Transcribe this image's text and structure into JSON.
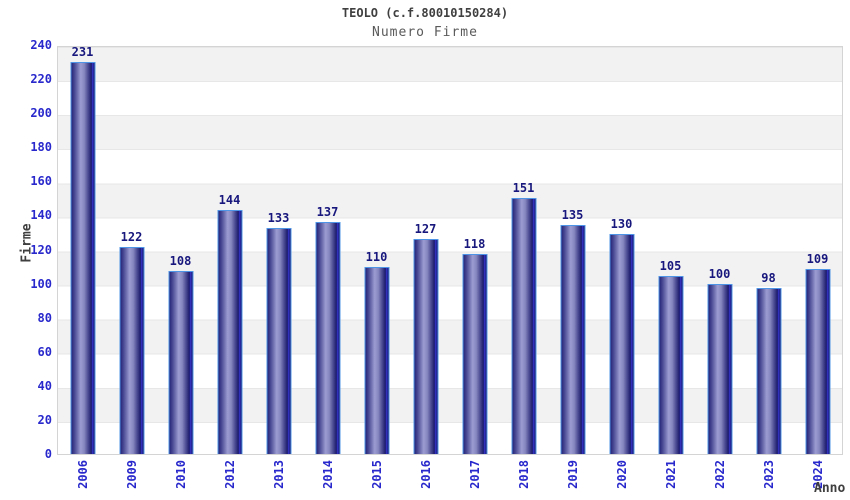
{
  "chart_data": {
    "type": "bar",
    "title": "TEOLO (c.f.80010150284)",
    "subtitle": "Numero Firme",
    "xlabel": "Anno",
    "ylabel": "Firme",
    "categories": [
      "2006",
      "2009",
      "2010",
      "2012",
      "2013",
      "2014",
      "2015",
      "2016",
      "2017",
      "2018",
      "2019",
      "2020",
      "2021",
      "2022",
      "2023",
      "2024"
    ],
    "values": [
      231,
      122,
      108,
      144,
      133,
      137,
      110,
      127,
      118,
      151,
      135,
      130,
      105,
      100,
      98,
      109
    ],
    "ylim": [
      0,
      240
    ],
    "ytick_step": 20,
    "yticks": [
      0,
      20,
      40,
      60,
      80,
      100,
      120,
      140,
      160,
      180,
      200,
      220,
      240
    ],
    "grid": "horizontal alternating bands, line every 20 units",
    "legend_position": "none",
    "bar_value_labels_shown": true,
    "x_tick_rotation_degrees": -90
  },
  "colors": {
    "title_color": "#3f3f3f",
    "subtitle_color": "#5a5a5a",
    "axis_label": "#3f3f3f",
    "tick_label": "#2828cc",
    "value_label": "#17177d",
    "band_gray": "#f3f2f3",
    "band_white": "#ffffff",
    "grid_line": "#e7e7e7",
    "plot_border": "#d4d4d4",
    "bar_dark": "#26267a",
    "bar_light": "#9c9cd2",
    "bar_stripe": "#3434cc",
    "bar_border": "#4e94e6"
  }
}
